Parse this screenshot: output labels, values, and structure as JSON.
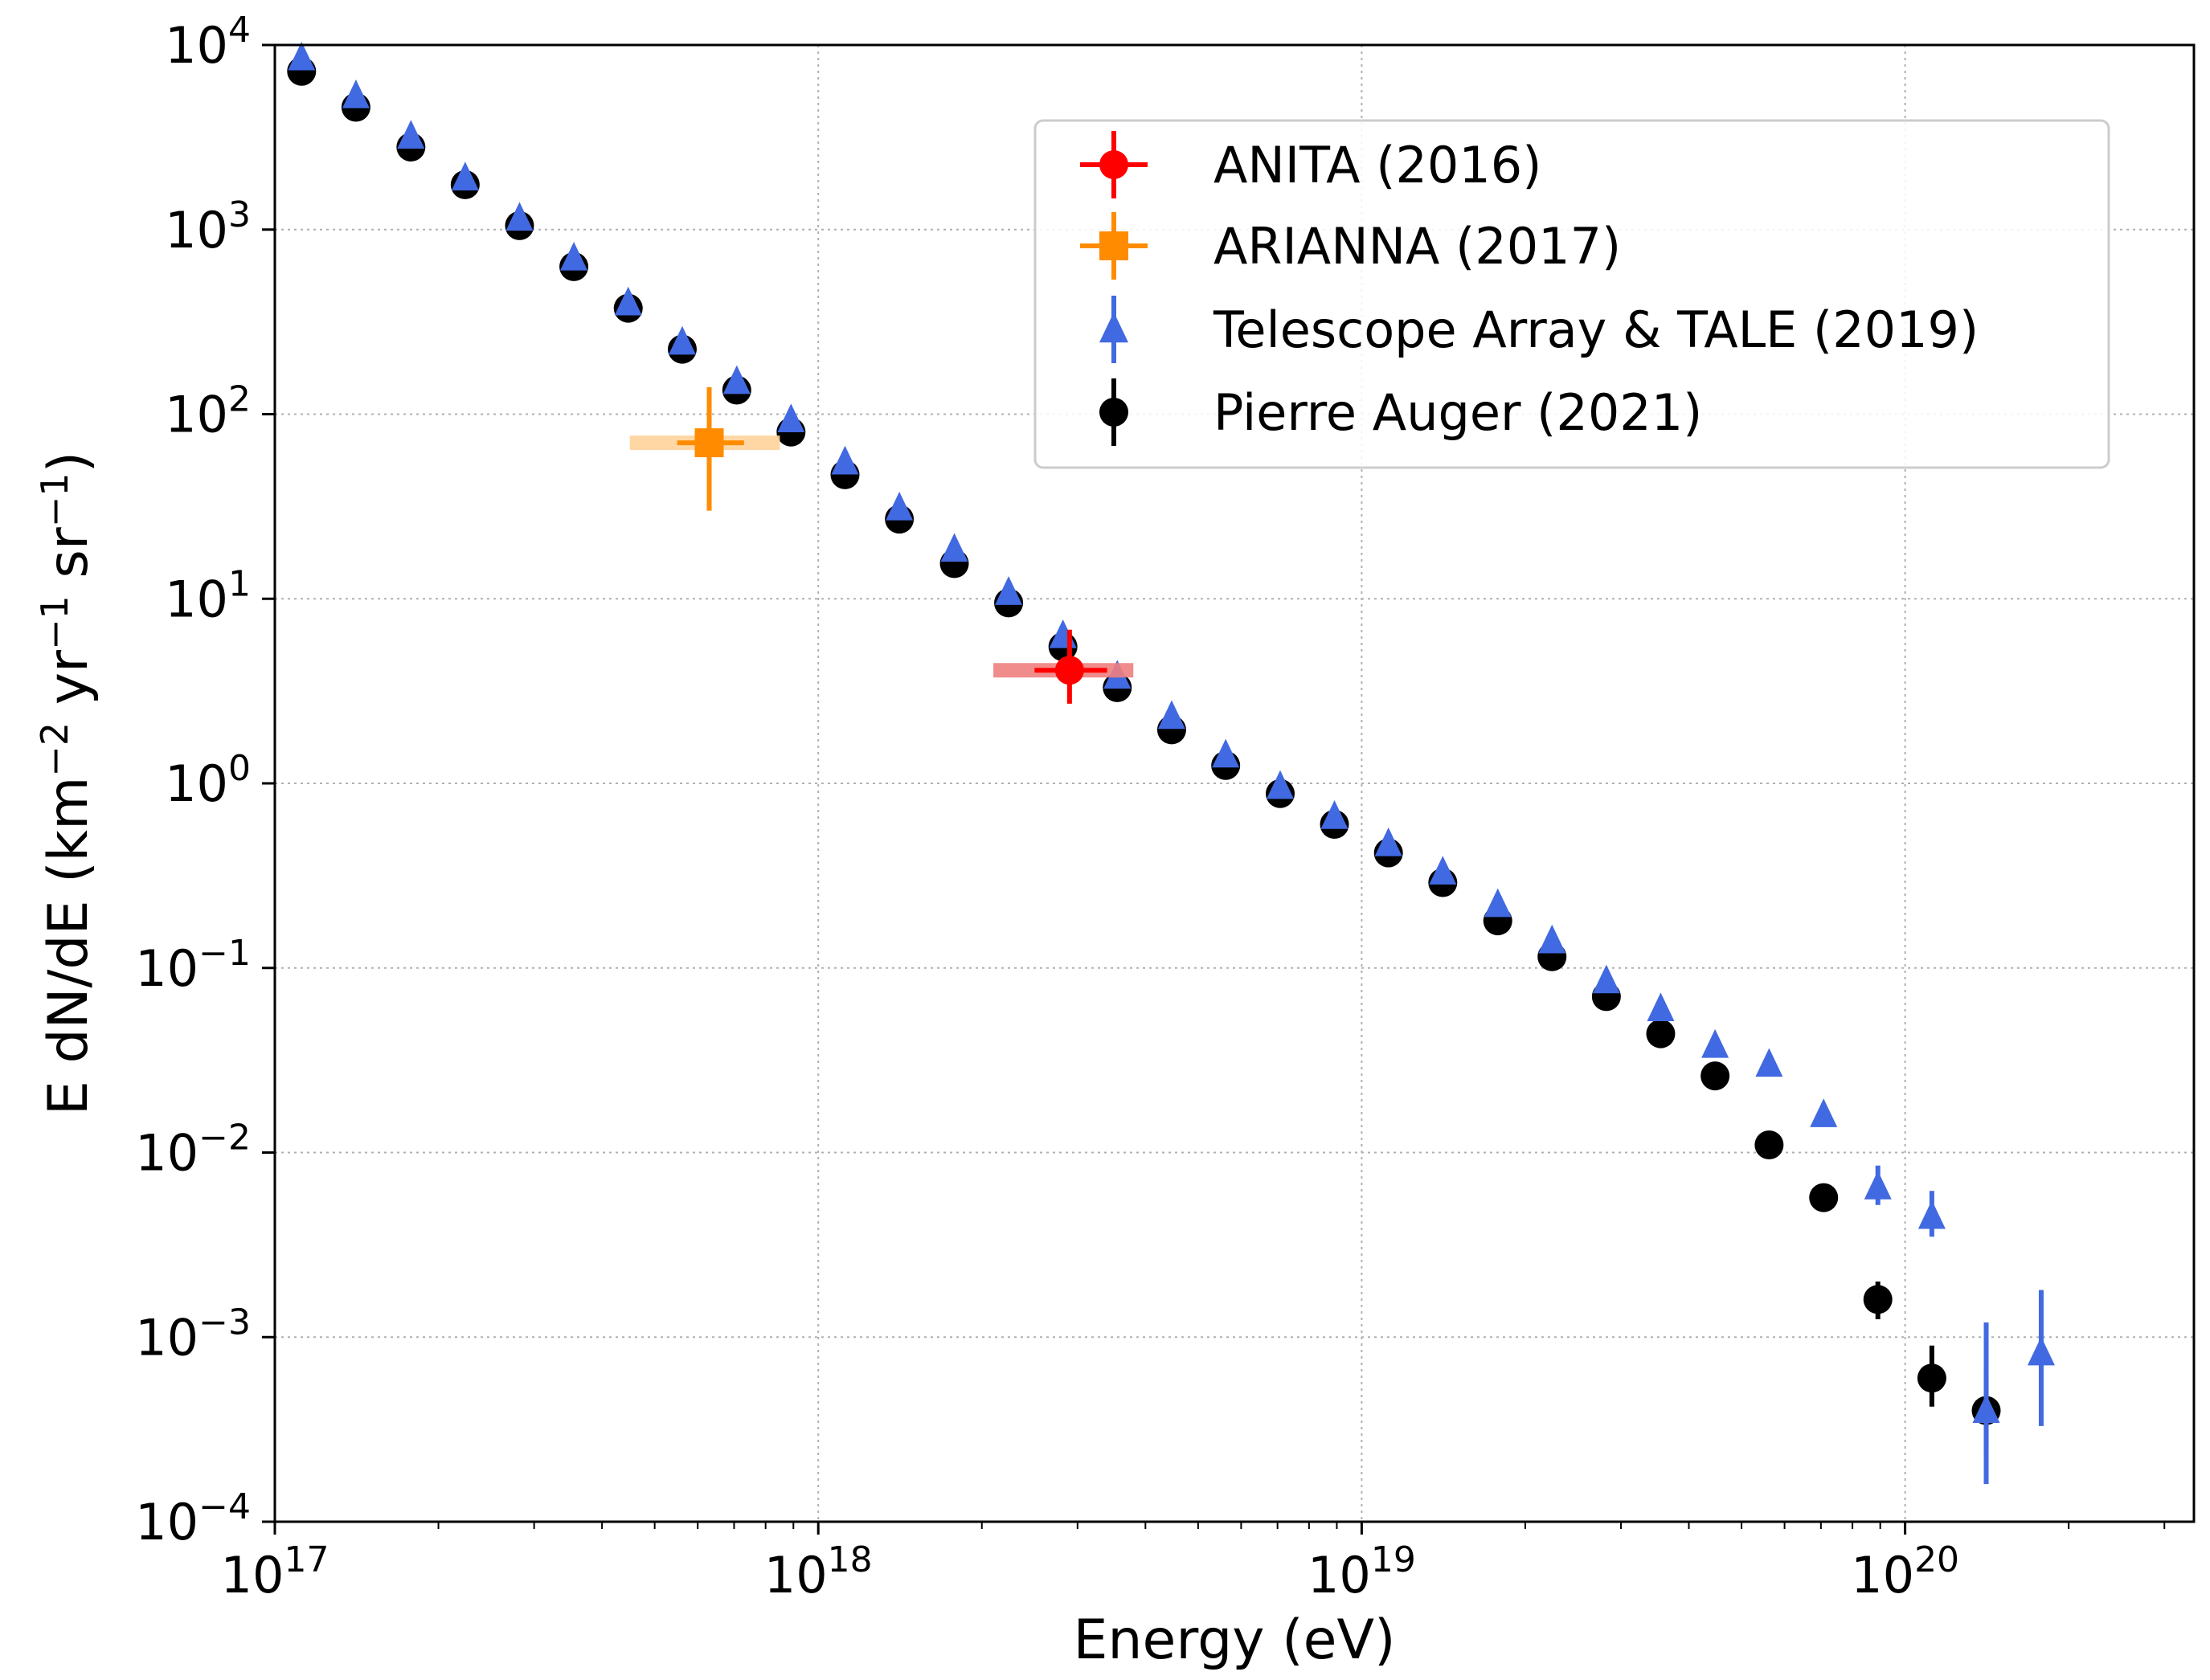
{
  "chart_data": {
    "type": "scatter",
    "xscale": "log",
    "yscale": "log",
    "xlabel": "Energy (eV)",
    "ylabel_parts": [
      "E dN/dE (km",
      "−2",
      " yr",
      "−1",
      " sr",
      "−1",
      ")"
    ],
    "xlim": [
      1e+17,
      3.4e+20
    ],
    "ylim": [
      0.0001,
      10000.0
    ],
    "grid": true,
    "legend_position": "upper-right",
    "x_ticks": [
      {
        "value": 1e+17,
        "base": "10",
        "exp": "17"
      },
      {
        "value": 1e+18,
        "base": "10",
        "exp": "18"
      },
      {
        "value": 1e+19,
        "base": "10",
        "exp": "19"
      },
      {
        "value": 1e+20,
        "base": "10",
        "exp": "20"
      }
    ],
    "y_ticks": [
      {
        "value": 0.0001,
        "base": "10",
        "exp": "−4"
      },
      {
        "value": 0.001,
        "base": "10",
        "exp": "−3"
      },
      {
        "value": 0.01,
        "base": "10",
        "exp": "−2"
      },
      {
        "value": 0.1,
        "base": "10",
        "exp": "−1"
      },
      {
        "value": 1.0,
        "base": "10",
        "exp": "0"
      },
      {
        "value": 10.0,
        "base": "10",
        "exp": "1"
      },
      {
        "value": 100.0,
        "base": "10",
        "exp": "2"
      },
      {
        "value": 1000.0,
        "base": "10",
        "exp": "3"
      },
      {
        "value": 10000.0,
        "base": "10",
        "exp": "4"
      }
    ],
    "series": [
      {
        "name": "ANITA (2016)",
        "marker": "circle",
        "color": "#ff0000",
        "band_color": "#f08080",
        "points": [
          {
            "x": 2.9e+18,
            "y": 4.1,
            "yerr_low": 2.7,
            "yerr_high": 6.8,
            "xerr_low": 2.5e+18,
            "xerr_high": 3.4e+18,
            "xband": [
              2.1e+18,
              3.8e+18
            ]
          }
        ]
      },
      {
        "name": "ARIANNA (2017)",
        "marker": "square",
        "color": "#ff8c00",
        "band_color": "#ffd39b",
        "points": [
          {
            "x": 6.3e+17,
            "y": 70,
            "yerr_low": 30,
            "yerr_high": 140,
            "xerr_low": 5.5e+17,
            "xerr_high": 7.3e+17,
            "xband": [
              4.5e+17,
              8.5e+17
            ]
          }
        ]
      },
      {
        "name": "Telescope Array & TALE (2019)",
        "marker": "triangle",
        "color": "#4169e1",
        "points": [
          {
            "x": 1.12e+17,
            "y": 8500
          },
          {
            "x": 1.41e+17,
            "y": 5300
          },
          {
            "x": 1.78e+17,
            "y": 3200
          },
          {
            "x": 2.24e+17,
            "y": 1900
          },
          {
            "x": 2.82e+17,
            "y": 1150
          },
          {
            "x": 3.55e+17,
            "y": 700
          },
          {
            "x": 4.47e+17,
            "y": 400
          },
          {
            "x": 5.62e+17,
            "y": 245
          },
          {
            "x": 7.08e+17,
            "y": 150
          },
          {
            "x": 8.91e+17,
            "y": 93
          },
          {
            "x": 1.12e+18,
            "y": 55
          },
          {
            "x": 1.41e+18,
            "y": 31
          },
          {
            "x": 1.78e+18,
            "y": 18.5
          },
          {
            "x": 2.24e+18,
            "y": 10.8
          },
          {
            "x": 2.82e+18,
            "y": 6.3
          },
          {
            "x": 3.55e+18,
            "y": 3.8
          },
          {
            "x": 4.47e+18,
            "y": 2.3
          },
          {
            "x": 5.62e+18,
            "y": 1.42
          },
          {
            "x": 7.08e+18,
            "y": 0.96
          },
          {
            "x": 8.91e+18,
            "y": 0.66
          },
          {
            "x": 1.12e+19,
            "y": 0.47
          },
          {
            "x": 1.41e+19,
            "y": 0.33
          },
          {
            "x": 1.78e+19,
            "y": 0.22
          },
          {
            "x": 2.24e+19,
            "y": 0.14
          },
          {
            "x": 2.82e+19,
            "y": 0.085
          },
          {
            "x": 3.55e+19,
            "y": 0.06
          },
          {
            "x": 4.47e+19,
            "y": 0.038
          },
          {
            "x": 5.62e+19,
            "y": 0.03
          },
          {
            "x": 7.08e+19,
            "y": 0.016
          },
          {
            "x": 8.91e+19,
            "y": 0.0065,
            "yerr_low": 0.0052,
            "yerr_high": 0.0085
          },
          {
            "x": 1.12e+20,
            "y": 0.0045,
            "yerr_low": 0.0035,
            "yerr_high": 0.0062
          },
          {
            "x": 1.41e+20,
            "y": 0.0004,
            "yerr_low": 0.00016,
            "yerr_high": 0.0012
          },
          {
            "x": 1.78e+20,
            "y": 0.00082,
            "yerr_low": 0.00033,
            "yerr_high": 0.0018
          }
        ]
      },
      {
        "name": "Pierre Auger (2021)",
        "marker": "circle",
        "color": "#000000",
        "points": [
          {
            "x": 1.12e+17,
            "y": 7200
          },
          {
            "x": 1.41e+17,
            "y": 4600
          },
          {
            "x": 1.78e+17,
            "y": 2800
          },
          {
            "x": 2.24e+17,
            "y": 1750
          },
          {
            "x": 2.82e+17,
            "y": 1050
          },
          {
            "x": 3.55e+17,
            "y": 630
          },
          {
            "x": 4.47e+17,
            "y": 375
          },
          {
            "x": 5.62e+17,
            "y": 225
          },
          {
            "x": 7.08e+17,
            "y": 135
          },
          {
            "x": 8.91e+17,
            "y": 80
          },
          {
            "x": 1.12e+18,
            "y": 47
          },
          {
            "x": 1.41e+18,
            "y": 27
          },
          {
            "x": 1.78e+18,
            "y": 15.5
          },
          {
            "x": 2.24e+18,
            "y": 9.5
          },
          {
            "x": 2.82e+18,
            "y": 5.5
          },
          {
            "x": 3.55e+18,
            "y": 3.3
          },
          {
            "x": 4.47e+18,
            "y": 1.95
          },
          {
            "x": 5.62e+18,
            "y": 1.25
          },
          {
            "x": 7.08e+18,
            "y": 0.88
          },
          {
            "x": 8.91e+18,
            "y": 0.6
          },
          {
            "x": 1.12e+19,
            "y": 0.42
          },
          {
            "x": 1.41e+19,
            "y": 0.29
          },
          {
            "x": 1.78e+19,
            "y": 0.18
          },
          {
            "x": 2.24e+19,
            "y": 0.115
          },
          {
            "x": 2.82e+19,
            "y": 0.07
          },
          {
            "x": 3.55e+19,
            "y": 0.044
          },
          {
            "x": 4.47e+19,
            "y": 0.026
          },
          {
            "x": 5.62e+19,
            "y": 0.011
          },
          {
            "x": 7.08e+19,
            "y": 0.0057
          },
          {
            "x": 8.91e+19,
            "y": 0.0016,
            "yerr_low": 0.00125,
            "yerr_high": 0.002
          },
          {
            "x": 1.12e+20,
            "y": 0.0006,
            "yerr_low": 0.00042,
            "yerr_high": 0.0009
          },
          {
            "x": 1.41e+20,
            "y": 0.0004,
            "yerr_low": 0.00024,
            "yerr_high": 0.00065
          }
        ]
      }
    ]
  }
}
